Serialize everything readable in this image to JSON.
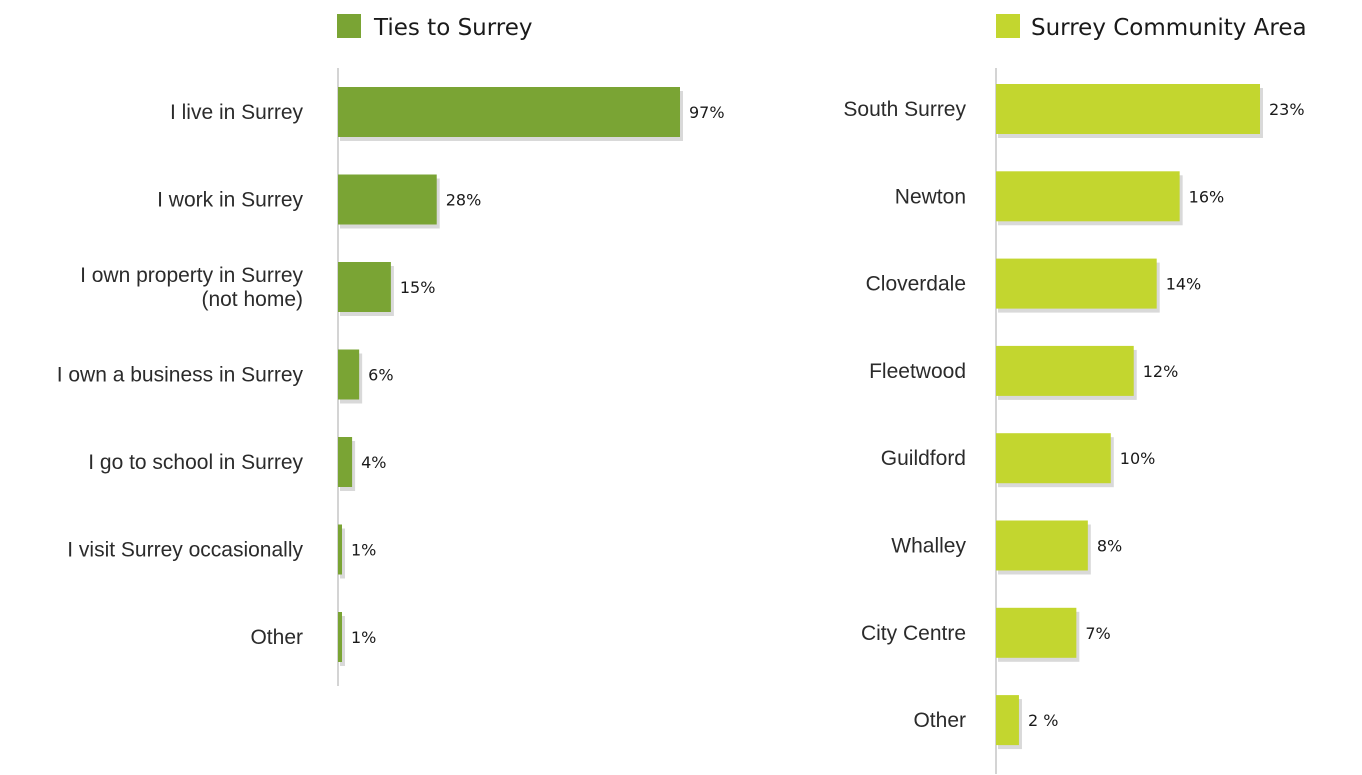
{
  "chart_data": [
    {
      "type": "bar",
      "orientation": "horizontal",
      "legend": "Ties to Surrey",
      "legend_position": "top",
      "color": "#7aa434",
      "categories": [
        "I live in Surrey",
        "I work in Surrey",
        "I own property in Surrey (not home)",
        "I own a business in Surrey",
        "I go to school in Surrey",
        "I visit Surrey occasionally",
        "Other"
      ],
      "category_lines": [
        [
          "I live in Surrey"
        ],
        [
          "I work in Surrey"
        ],
        [
          "I own property in Surrey",
          "(not home)"
        ],
        [
          "I own a business in Surrey"
        ],
        [
          "I go to school in Surrey"
        ],
        [
          "I visit Surrey occasionally"
        ],
        [
          "Other"
        ]
      ],
      "values": [
        97,
        28,
        15,
        6,
        4,
        1,
        1
      ],
      "value_labels": [
        "97%",
        "28%",
        "15%",
        "6%",
        "4%",
        "1%",
        "1%"
      ],
      "unit": "%",
      "grid": false
    },
    {
      "type": "bar",
      "orientation": "horizontal",
      "legend": "Surrey Community Area",
      "legend_position": "top",
      "color": "#c3d62f",
      "categories": [
        "South Surrey",
        "Newton",
        "Cloverdale",
        "Fleetwood",
        "Guildford",
        "Whalley",
        "City Centre",
        "Other"
      ],
      "category_lines": [
        [
          "South Surrey"
        ],
        [
          "Newton"
        ],
        [
          "Cloverdale"
        ],
        [
          "Fleetwood"
        ],
        [
          "Guildford"
        ],
        [
          "Whalley"
        ],
        [
          "City Centre"
        ],
        [
          "Other"
        ]
      ],
      "values": [
        23,
        16,
        14,
        12,
        10,
        8,
        7,
        2
      ],
      "value_labels": [
        "23%",
        "16%",
        "14%",
        "12%",
        "10%",
        "8%",
        "7%",
        "2 %"
      ],
      "unit": "%",
      "grid": false
    }
  ]
}
